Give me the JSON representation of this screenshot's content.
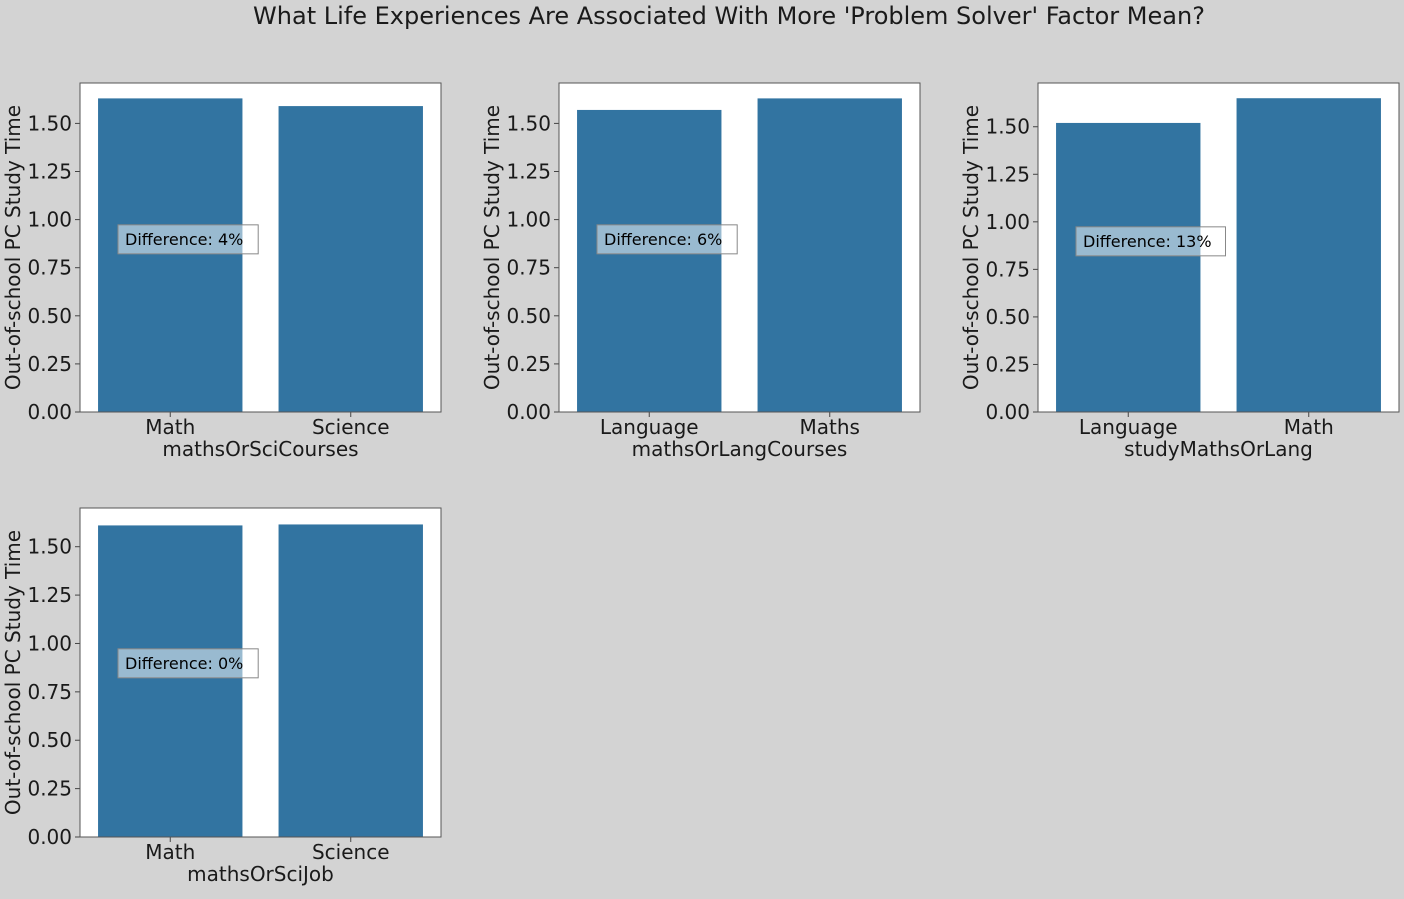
{
  "figure": {
    "title": "What Life Experiences Are Associated With More 'Problem Solver' Factor Mean?",
    "bar_color": "#3274a1",
    "plot_bg": "#ffffff",
    "fig_bg": "#d3d3d3"
  },
  "chart_data": [
    {
      "type": "bar",
      "categories": [
        "Math",
        "Science"
      ],
      "values": [
        1.63,
        1.59
      ],
      "xlabel": "mathsOrSciCourses",
      "ylabel": "Out-of-school PC Study Time",
      "ylim": [
        0,
        1.71
      ],
      "yticks": [
        0,
        0.25,
        0.5,
        0.75,
        1.0,
        1.25,
        1.5
      ],
      "ytick_labels": [
        "0.00",
        "0.25",
        "0.50",
        "0.75",
        "1.00",
        "1.25",
        "1.50"
      ],
      "annotation": "Difference: 4%",
      "annotation_y": 0.9
    },
    {
      "type": "bar",
      "categories": [
        "Language",
        "Maths"
      ],
      "values": [
        1.57,
        1.63
      ],
      "xlabel": "mathsOrLangCourses",
      "ylabel": "Out-of-school PC Study Time",
      "ylim": [
        0,
        1.71
      ],
      "yticks": [
        0,
        0.25,
        0.5,
        0.75,
        1.0,
        1.25,
        1.5
      ],
      "ytick_labels": [
        "0.00",
        "0.25",
        "0.50",
        "0.75",
        "1.00",
        "1.25",
        "1.50"
      ],
      "annotation": "Difference: 6%",
      "annotation_y": 0.9
    },
    {
      "type": "bar",
      "categories": [
        "Language",
        "Math"
      ],
      "values": [
        1.52,
        1.65
      ],
      "xlabel": "studyMathsOrLang",
      "ylabel": "Out-of-school PC Study Time",
      "ylim": [
        0,
        1.73
      ],
      "yticks": [
        0,
        0.25,
        0.5,
        0.75,
        1.0,
        1.25,
        1.5
      ],
      "ytick_labels": [
        "0.00",
        "0.25",
        "0.50",
        "0.75",
        "1.00",
        "1.25",
        "1.50"
      ],
      "annotation": "Difference: 13%",
      "annotation_y": 0.9
    },
    {
      "type": "bar",
      "categories": [
        "Math",
        "Science"
      ],
      "values": [
        1.61,
        1.615
      ],
      "xlabel": "mathsOrSciJob",
      "ylabel": "Out-of-school PC Study Time",
      "ylim": [
        0,
        1.7
      ],
      "yticks": [
        0,
        0.25,
        0.5,
        0.75,
        1.0,
        1.25,
        1.5
      ],
      "ytick_labels": [
        "0.00",
        "0.25",
        "0.50",
        "0.75",
        "1.00",
        "1.25",
        "1.50"
      ],
      "annotation": "Difference: 0%",
      "annotation_y": 0.9
    }
  ]
}
